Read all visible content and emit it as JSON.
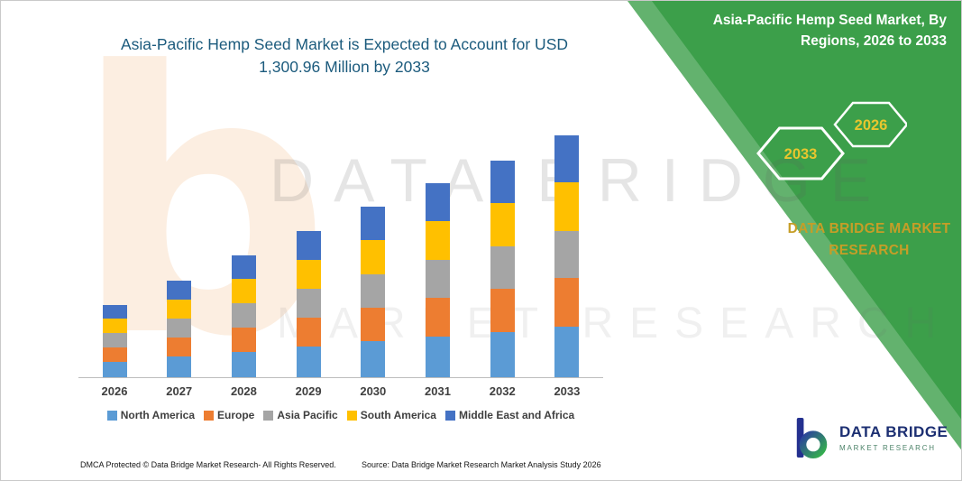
{
  "header": {
    "title_lines": [
      "Asia-Pacific Hemp Seed Market is Expected to Account for USD",
      "1,300.96 Million by 2033"
    ]
  },
  "side_panel": {
    "title_lines": [
      "Asia-Pacific Hemp Seed Market, By",
      "Regions, 2026 to 2033"
    ],
    "hexagon_years": [
      "2033",
      "2026"
    ],
    "brand_lines": [
      "DATA BRIDGE MARKET",
      "RESEARCH"
    ],
    "panel_color": "#3C9F4A",
    "year_color": "#E8C62E"
  },
  "watermark": {
    "letter": "b",
    "line1": "DATA BRIDGE",
    "line2": "MARKET RESEARCH"
  },
  "chart_data": {
    "type": "bar",
    "stacked": true,
    "title": "Asia-Pacific Hemp Seed Market is Expected to Account for USD 1,300.96 Million by 2033",
    "unit": "USD Million",
    "categories": [
      "2026",
      "2027",
      "2028",
      "2029",
      "2030",
      "2031",
      "2032",
      "2033"
    ],
    "series": [
      {
        "name": "North America",
        "color": "#5B9BD5",
        "values": [
          82,
          110,
          138,
          165,
          193,
          219,
          245,
          273.2
        ]
      },
      {
        "name": "Europe",
        "color": "#ED7D31",
        "values": [
          78,
          104,
          131,
          157,
          183,
          209,
          233,
          260.19
        ]
      },
      {
        "name": "Asia Pacific",
        "color": "#A5A5A5",
        "values": [
          76,
          102,
          128,
          153,
          179,
          204,
          228,
          253.69
        ]
      },
      {
        "name": "South America",
        "color": "#FFC000",
        "values": [
          78,
          104,
          131,
          157,
          183,
          209,
          233,
          260.19
        ]
      },
      {
        "name": "Middle East and Africa",
        "color": "#4472C4",
        "values": [
          76,
          102,
          127,
          154,
          179,
          203,
          227,
          253.69
        ]
      }
    ],
    "totals": [
      390,
      522,
      655,
      786,
      917,
      1044,
      1166,
      1300.96
    ],
    "ylim": [
      0,
      1300.96
    ],
    "grid": false,
    "y_axis_visible": false,
    "legend_position": "bottom"
  },
  "footer": {
    "dmca": "DMCA Protected © Data Bridge Market Research-  All Rights Reserved.",
    "source": "Source: Data Bridge Market Research  Market Analysis Study 2026"
  },
  "logo": {
    "brand": "DATA BRIDGE",
    "tagline": "MARKET RESEARCH"
  }
}
